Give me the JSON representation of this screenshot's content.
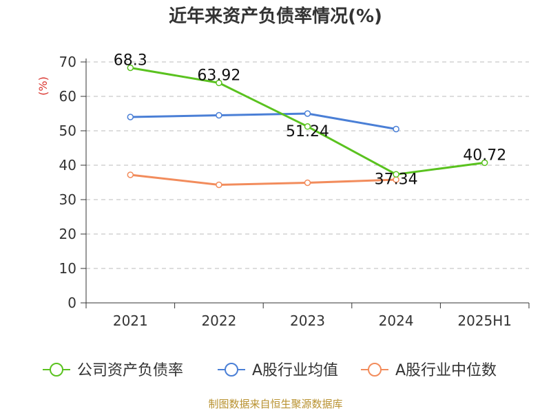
{
  "chart_data": {
    "type": "line",
    "title": "近年来资产负债率情况(%)",
    "ylabel": "(%)",
    "xlabel": "",
    "categories": [
      "2021",
      "2022",
      "2023",
      "2024",
      "2025H1"
    ],
    "ylim": [
      0,
      70
    ],
    "yticks": [
      0,
      10,
      20,
      30,
      40,
      50,
      60,
      70
    ],
    "grid": true,
    "legend_position": "bottom",
    "series": [
      {
        "name": "公司资产负债率",
        "color": "#5ac21f",
        "values": [
          68.3,
          63.92,
          51.24,
          37.34,
          40.72
        ],
        "labels": [
          "68.3",
          "63.92",
          "51.24",
          "37.34",
          "40.72"
        ]
      },
      {
        "name": "A股行业均值",
        "color": "#4a7fd6",
        "values": [
          54.0,
          54.5,
          55.0,
          50.5,
          null
        ]
      },
      {
        "name": "A股行业中位数",
        "color": "#f28c5c",
        "values": [
          37.2,
          34.3,
          34.9,
          35.8,
          null
        ]
      }
    ]
  },
  "footer": {
    "source": "制图数据来自恒生聚源数据库"
  }
}
